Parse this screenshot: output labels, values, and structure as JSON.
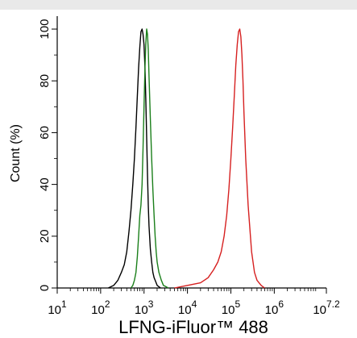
{
  "chart_data": {
    "type": "line",
    "title": "",
    "xlabel": "LFNG-iFluor™ 488",
    "ylabel": "Count  (%)",
    "xscale": "log",
    "xlim": [
      10,
      15848932
    ],
    "ylim": [
      0,
      105
    ],
    "x_ticks": [
      {
        "value": 10,
        "base": "10",
        "exp": "1"
      },
      {
        "value": 100,
        "base": "10",
        "exp": "2"
      },
      {
        "value": 1000,
        "base": "10",
        "exp": "3"
      },
      {
        "value": 10000,
        "base": "10",
        "exp": "4"
      },
      {
        "value": 100000,
        "base": "10",
        "exp": "5"
      },
      {
        "value": 1000000,
        "base": "10",
        "exp": "6"
      },
      {
        "value": 15848932,
        "base": "10",
        "exp": "7.2"
      }
    ],
    "y_ticks": [
      0,
      20,
      40,
      60,
      80,
      100
    ],
    "grid": false,
    "legend": "none",
    "series": [
      {
        "color": "#000000",
        "x": [
          150,
          200,
          250,
          300,
          350,
          400,
          450,
          500,
          550,
          600,
          650,
          700,
          750,
          800,
          850,
          900,
          950,
          1000,
          1050,
          1100,
          1150,
          1200,
          1250,
          1300,
          1400,
          1500,
          1600,
          1700,
          1800,
          1900,
          2000,
          2200,
          2400
        ],
        "y": [
          0,
          1,
          3,
          6,
          9,
          14,
          22,
          30,
          40,
          50,
          62,
          74,
          85,
          93,
          99,
          100,
          98,
          94,
          85,
          72,
          58,
          44,
          32,
          24,
          15,
          10,
          6,
          4,
          3,
          2,
          1,
          0.5,
          0
        ]
      },
      {
        "color": "#1a7f1a",
        "x": [
          500,
          550,
          600,
          650,
          700,
          750,
          800,
          850,
          900,
          950,
          1000,
          1050,
          1100,
          1150,
          1200,
          1250,
          1300,
          1400,
          1500,
          1600,
          1700,
          1800,
          1900,
          2000,
          2200,
          2500,
          2800,
          3200,
          3600
        ],
        "y": [
          0,
          1,
          3,
          6,
          12,
          20,
          28,
          32,
          40,
          54,
          70,
          85,
          95,
          100,
          98,
          92,
          82,
          65,
          50,
          38,
          28,
          20,
          14,
          10,
          6,
          3,
          1,
          0.5,
          0
        ]
      },
      {
        "color": "#d62020",
        "x": [
          5000,
          10000,
          20000,
          30000,
          40000,
          50000,
          60000,
          70000,
          80000,
          90000,
          100000,
          110000,
          120000,
          130000,
          140000,
          150000,
          160000,
          170000,
          180000,
          190000,
          200000,
          220000,
          250000,
          300000,
          350000,
          400000,
          500000,
          600000
        ],
        "y": [
          0,
          1,
          2,
          4,
          7,
          10,
          14,
          20,
          28,
          38,
          50,
          62,
          74,
          86,
          94,
          99,
          100,
          97,
          90,
          80,
          68,
          50,
          32,
          14,
          6,
          3,
          1,
          0
        ]
      }
    ]
  }
}
